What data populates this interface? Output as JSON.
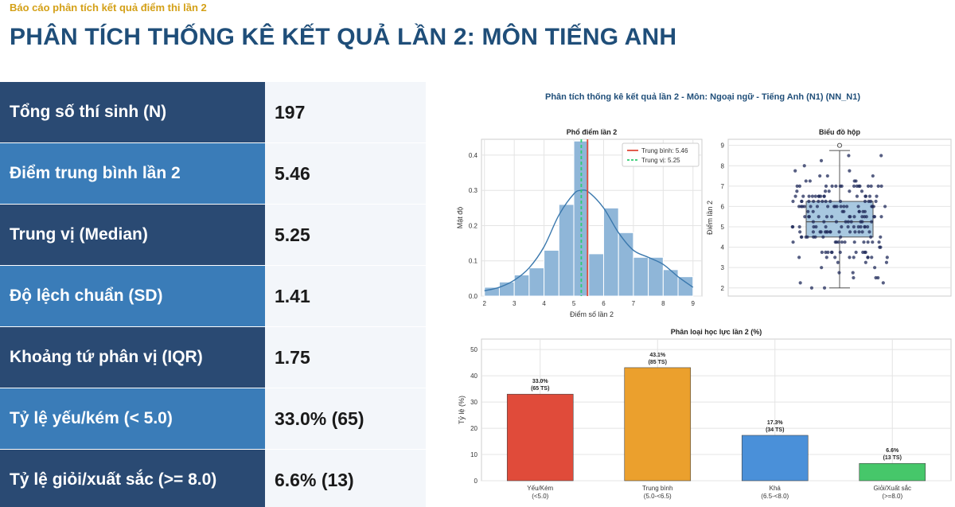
{
  "header": {
    "supertitle": "Báo cáo phân tích kết quả điểm thi lần 2",
    "title": "PHÂN TÍCH THỐNG KÊ KẾT QUẢ LẦN 2: MÔN TIẾNG ANH"
  },
  "stats": [
    {
      "label": "Tổng số thí sinh (N)",
      "value": "197"
    },
    {
      "label": "Điểm trung bình lần 2",
      "value": "5.46"
    },
    {
      "label": "Trung vị (Median)",
      "value": "5.25"
    },
    {
      "label": "Độ lệch chuẩn (SD)",
      "value": "1.41"
    },
    {
      "label": "Khoảng tứ phân vị (IQR)",
      "value": "1.75"
    },
    {
      "label": "Tỷ lệ yếu/kém (< 5.0)",
      "value": "33.0% (65)"
    },
    {
      "label": "Tỷ lệ giỏi/xuất sắc (>= 8.0)",
      "value": "6.6% (13)"
    }
  ],
  "colors": {
    "stat_dark": "#2a4a73",
    "stat_light": "#3a7cb8",
    "hist_bar": "#8fb6d8",
    "kde": "#3a78ad",
    "mean_line": "#e04b3a",
    "median_line": "#2ecc71",
    "box_fill": "#a8c8e0",
    "points": "#1f2a5a",
    "cat_weak": "#e04b3a",
    "cat_avg": "#eba02d",
    "cat_good": "#4a90d9",
    "cat_excellent": "#46c76a"
  },
  "figure_title": "Phân tích thống kê kết quả lần 2 - Môn: Ngoại ngữ - Tiếng Anh (N1) (NN_N1)",
  "chart_data": [
    {
      "type": "bar",
      "title": "Phổ điểm lần 2",
      "xlabel": "Điểm số lần 2",
      "ylabel": "Mật độ",
      "xlim": [
        1.9,
        9.3
      ],
      "ylim": [
        0,
        0.445
      ],
      "x_ticks": [
        2,
        3,
        4,
        5,
        6,
        7,
        8,
        9
      ],
      "y_ticks": [
        0.0,
        0.1,
        0.2,
        0.3,
        0.4
      ],
      "bins": [
        {
          "x0": 2.0,
          "x1": 2.5,
          "density": 0.025
        },
        {
          "x0": 2.5,
          "x1": 3.0,
          "density": 0.04
        },
        {
          "x0": 3.0,
          "x1": 3.5,
          "density": 0.06
        },
        {
          "x0": 3.5,
          "x1": 4.0,
          "density": 0.08
        },
        {
          "x0": 4.0,
          "x1": 4.5,
          "density": 0.13
        },
        {
          "x0": 4.5,
          "x1": 5.0,
          "density": 0.26
        },
        {
          "x0": 5.0,
          "x1": 5.5,
          "density": 0.44
        },
        {
          "x0": 5.5,
          "x1": 6.0,
          "density": 0.12
        },
        {
          "x0": 6.0,
          "x1": 6.5,
          "density": 0.25
        },
        {
          "x0": 6.5,
          "x1": 7.0,
          "density": 0.18
        },
        {
          "x0": 7.0,
          "x1": 7.5,
          "density": 0.11
        },
        {
          "x0": 7.5,
          "x1": 8.0,
          "density": 0.11
        },
        {
          "x0": 8.0,
          "x1": 8.5,
          "density": 0.075
        },
        {
          "x0": 8.5,
          "x1": 9.0,
          "density": 0.055
        }
      ],
      "kde": {
        "x": [
          2.0,
          2.5,
          3.0,
          3.5,
          4.0,
          4.5,
          5.0,
          5.25,
          5.5,
          6.0,
          6.5,
          7.0,
          7.5,
          8.0,
          8.5,
          9.0
        ],
        "y": [
          0.015,
          0.025,
          0.045,
          0.08,
          0.14,
          0.23,
          0.29,
          0.3,
          0.295,
          0.25,
          0.18,
          0.13,
          0.11,
          0.09,
          0.055,
          0.025
        ]
      },
      "mean": 5.46,
      "median": 5.25,
      "legend": [
        "Trung bình: 5.46",
        "Trung vị: 5.25"
      ]
    },
    {
      "type": "box",
      "title": "Biểu đồ hộp",
      "ylabel": "Điểm lần 2",
      "ylim": [
        1.6,
        9.3
      ],
      "y_ticks": [
        2,
        3,
        4,
        5,
        6,
        7,
        8,
        9
      ],
      "q1": 4.5,
      "median": 5.25,
      "q3": 6.25,
      "whisker_low": 2.0,
      "whisker_high": 8.75,
      "outliers": [
        9.0
      ],
      "n_points": 197
    },
    {
      "type": "bar",
      "title": "Phân loại học lực lần 2 (%)",
      "ylabel": "Tỷ lệ (%)",
      "ylim": [
        0,
        54
      ],
      "y_ticks": [
        0,
        10,
        20,
        30,
        40,
        50
      ],
      "categories": [
        [
          "Yếu/Kém",
          "(<5.0)"
        ],
        [
          "Trung bình",
          "(5.0-<6.5)"
        ],
        [
          "Khá",
          "(6.5-<8.0)"
        ],
        [
          "Giỏi/Xuất sắc",
          "(>=8.0)"
        ]
      ],
      "values": [
        33.0,
        43.1,
        17.3,
        6.6
      ],
      "labels": [
        [
          "33.0%",
          "(65 TS)"
        ],
        [
          "43.1%",
          "(85 TS)"
        ],
        [
          "17.3%",
          "(34 TS)"
        ],
        [
          "6.6%",
          "(13 TS)"
        ]
      ]
    }
  ]
}
